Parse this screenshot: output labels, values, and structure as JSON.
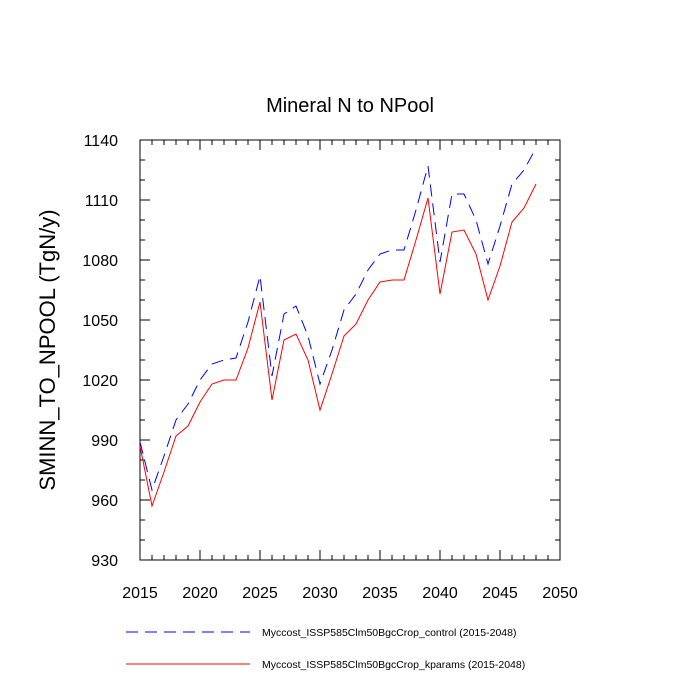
{
  "chart_data": {
    "type": "line",
    "title": "Mineral N to NPool",
    "xlabel": "",
    "ylabel": "SMINN_TO_NPOOL  (TgN/y)",
    "xlim": [
      2015,
      2050
    ],
    "ylim": [
      930,
      1140
    ],
    "x_ticks": [
      2015,
      2020,
      2025,
      2030,
      2035,
      2040,
      2045,
      2050
    ],
    "y_ticks": [
      930,
      960,
      990,
      1020,
      1050,
      1080,
      1110,
      1140
    ],
    "x": [
      2015,
      2016,
      2017,
      2018,
      2019,
      2020,
      2021,
      2022,
      2023,
      2024,
      2025,
      2026,
      2027,
      2028,
      2029,
      2030,
      2031,
      2032,
      2033,
      2034,
      2035,
      2036,
      2037,
      2038,
      2039,
      2040,
      2041,
      2042,
      2043,
      2044,
      2045,
      2046,
      2047,
      2048
    ],
    "series": [
      {
        "name": "Myccost_ISSP585Clm50BgcCrop_control (2015-2048)",
        "color": "#0000ff",
        "style": "dashed",
        "values": [
          989,
          965,
          982,
          1000,
          1008,
          1020,
          1028,
          1030,
          1031,
          1049,
          1072,
          1022,
          1053,
          1057,
          1042,
          1018,
          1035,
          1055,
          1063,
          1075,
          1083,
          1085,
          1085,
          1105,
          1127,
          1079,
          1113,
          1113,
          1100,
          1078,
          1097,
          1118,
          1125,
          1136
        ]
      },
      {
        "name": "Myccost_ISSP585Clm50BgcCrop_kparams (2015-2048)",
        "color": "#ff0000",
        "style": "solid",
        "values": [
          987,
          957,
          974,
          992,
          997,
          1009,
          1018,
          1020,
          1020,
          1036,
          1059,
          1010,
          1040,
          1043,
          1030,
          1005,
          1023,
          1042,
          1048,
          1060,
          1069,
          1070,
          1070,
          1090,
          1111,
          1063,
          1094,
          1095,
          1083,
          1060,
          1077,
          1099,
          1106,
          1118
        ]
      }
    ]
  }
}
